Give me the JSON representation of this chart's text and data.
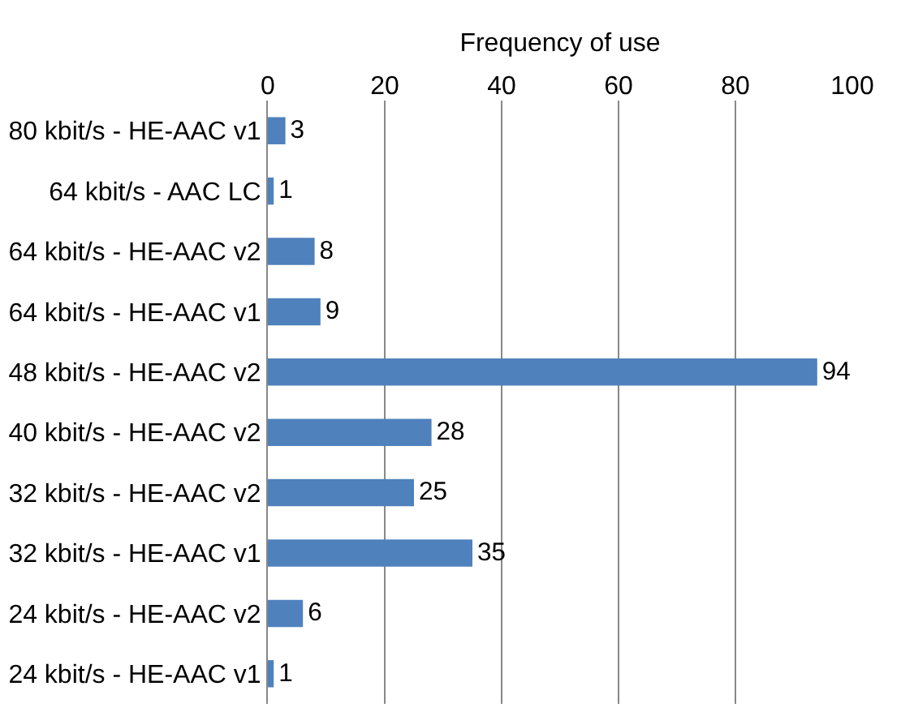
{
  "chart_data": {
    "type": "bar",
    "orientation": "horizontal",
    "xlabel": "Frequency of use",
    "categories": [
      "80 kbit/s - HE-AAC v1",
      "64 kbit/s - AAC LC",
      "64 kbit/s - HE-AAC v2",
      "64 kbit/s - HE-AAC v1",
      "48 kbit/s - HE-AAC v2",
      "40 kbit/s - HE-AAC v2",
      "32 kbit/s - HE-AAC v2",
      "32 kbit/s - HE-AAC v1",
      "24 kbit/s - HE-AAC v2",
      "24 kbit/s - HE-AAC v1"
    ],
    "values": [
      3,
      1,
      8,
      9,
      94,
      28,
      25,
      35,
      6,
      1
    ],
    "color": "#4f81bd",
    "xlim": [
      0,
      100
    ],
    "xticks": [
      0,
      20,
      40,
      60,
      80,
      100
    ],
    "grid": "x",
    "data_labels": true
  }
}
